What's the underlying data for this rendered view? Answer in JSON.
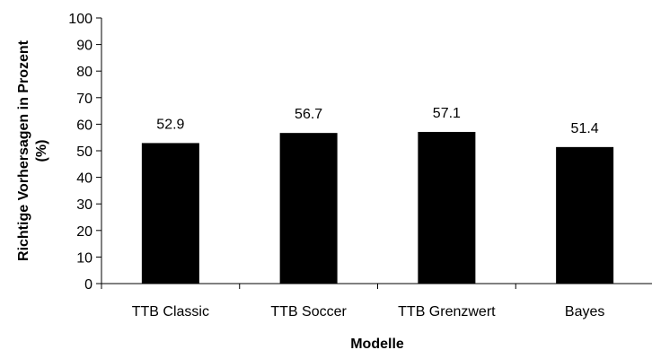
{
  "chart_data": {
    "type": "bar",
    "categories": [
      "TTB Classic",
      "TTB Soccer",
      "TTB Grenzwert",
      "Bayes"
    ],
    "values": [
      52.9,
      56.7,
      57.1,
      51.4
    ],
    "data_labels": [
      "52.9",
      "56.7",
      "57.1",
      "51.4"
    ],
    "title": "",
    "xlabel": "Modelle",
    "ylabel_line1": "Richtige Vorhersagen in Prozent",
    "ylabel_line2": "(%)",
    "ylim": [
      0,
      100
    ],
    "yticks": [
      0,
      10,
      20,
      30,
      40,
      50,
      60,
      70,
      80,
      90,
      100
    ],
    "ytick_labels": [
      "0",
      "10",
      "20",
      "30",
      "40",
      "50",
      "60",
      "70",
      "80",
      "90",
      "100"
    ],
    "bar_color": "#000000",
    "grid": false,
    "legend": "none"
  }
}
